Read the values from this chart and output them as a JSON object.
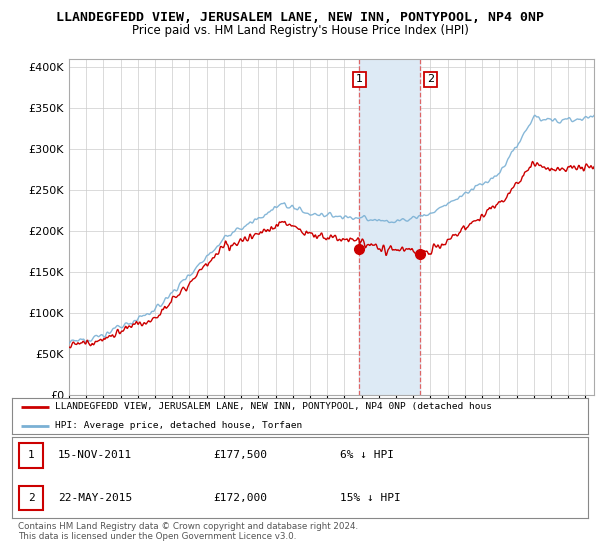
{
  "title": "LLANDEGFEDD VIEW, JERUSALEM LANE, NEW INN, PONTYPOOL, NP4 0NP",
  "subtitle": "Price paid vs. HM Land Registry's House Price Index (HPI)",
  "yticks": [
    0,
    50000,
    100000,
    150000,
    200000,
    250000,
    300000,
    350000,
    400000
  ],
  "ylim": [
    0,
    410000
  ],
  "xlim_start": 1995.0,
  "xlim_end": 2025.5,
  "background_color": "#ffffff",
  "grid_color": "#cccccc",
  "hpi_color": "#7ab0d4",
  "price_color": "#cc0000",
  "shaded_region": [
    2011.87,
    2015.42
  ],
  "shaded_color": "#ddeaf5",
  "transaction1_x": 2011.87,
  "transaction1_y": 177500,
  "transaction2_x": 2015.42,
  "transaction2_y": 172000,
  "legend_price_label": "LLANDEGFEDD VIEW, JERUSALEM LANE, NEW INN, PONTYPOOL, NP4 0NP (detached hous",
  "legend_hpi_label": "HPI: Average price, detached house, Torfaen",
  "footer": "Contains HM Land Registry data © Crown copyright and database right 2024.\nThis data is licensed under the Open Government Licence v3.0.",
  "title_fontsize": 9.5,
  "subtitle_fontsize": 8.5
}
